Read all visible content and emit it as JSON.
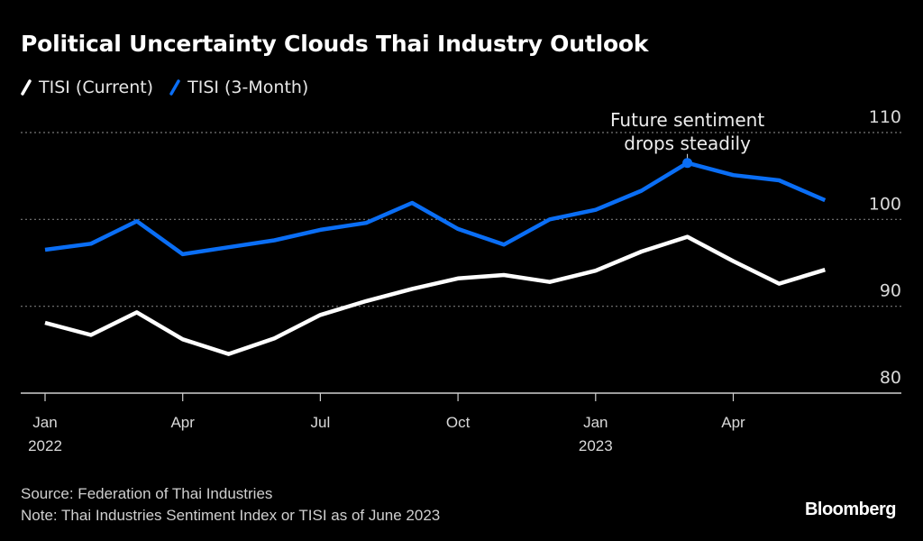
{
  "title": "Political Uncertainty Clouds Thai Industry Outlook",
  "legend": [
    {
      "label": "TISI (Current)",
      "color": "#ffffff"
    },
    {
      "label": "TISI (3-Month)",
      "color": "#0a6ef5"
    }
  ],
  "footer": {
    "source": "Source: Federation of Thai Industries",
    "note": "Note: Thai Industries Sentiment Index or TISI as of June 2023"
  },
  "brand": "Bloomberg",
  "chart_data": {
    "type": "line",
    "title": "Political Uncertainty Clouds Thai Industry Outlook",
    "xlabel": "",
    "ylabel": "",
    "x": [
      "2022-01",
      "2022-02",
      "2022-03",
      "2022-04",
      "2022-05",
      "2022-06",
      "2022-07",
      "2022-08",
      "2022-09",
      "2022-10",
      "2022-11",
      "2022-12",
      "2023-01",
      "2023-02",
      "2023-03",
      "2023-04",
      "2023-05",
      "2023-06"
    ],
    "x_ticks": [
      {
        "index": 0,
        "label": "Jan",
        "sublabel": "2022"
      },
      {
        "index": 3,
        "label": "Apr",
        "sublabel": ""
      },
      {
        "index": 6,
        "label": "Jul",
        "sublabel": ""
      },
      {
        "index": 9,
        "label": "Oct",
        "sublabel": ""
      },
      {
        "index": 12,
        "label": "Jan",
        "sublabel": "2023"
      },
      {
        "index": 15,
        "label": "Apr",
        "sublabel": ""
      }
    ],
    "ylim": [
      80,
      110
    ],
    "y_ticks": [
      80,
      90,
      100,
      110
    ],
    "y_axis_side": "right",
    "grid": true,
    "legend_placement": "top-left",
    "series": [
      {
        "name": "TISI (Current)",
        "color": "#ffffff",
        "values": [
          88.1,
          86.7,
          89.3,
          86.2,
          84.5,
          86.3,
          89.0,
          90.6,
          92.0,
          93.2,
          93.6,
          92.8,
          94.1,
          96.3,
          98.0,
          95.2,
          92.6,
          94.2
        ]
      },
      {
        "name": "TISI (3-Month)",
        "color": "#0a6ef5",
        "values": [
          96.5,
          97.2,
          99.8,
          96.0,
          96.8,
          97.6,
          98.8,
          99.6,
          101.9,
          98.9,
          97.1,
          100.0,
          101.1,
          103.3,
          106.5,
          105.1,
          104.5,
          102.2
        ]
      }
    ],
    "annotations": [
      {
        "series": "TISI (3-Month)",
        "index": 14,
        "text_lines": [
          "Future sentiment",
          "drops steadily"
        ]
      }
    ]
  }
}
